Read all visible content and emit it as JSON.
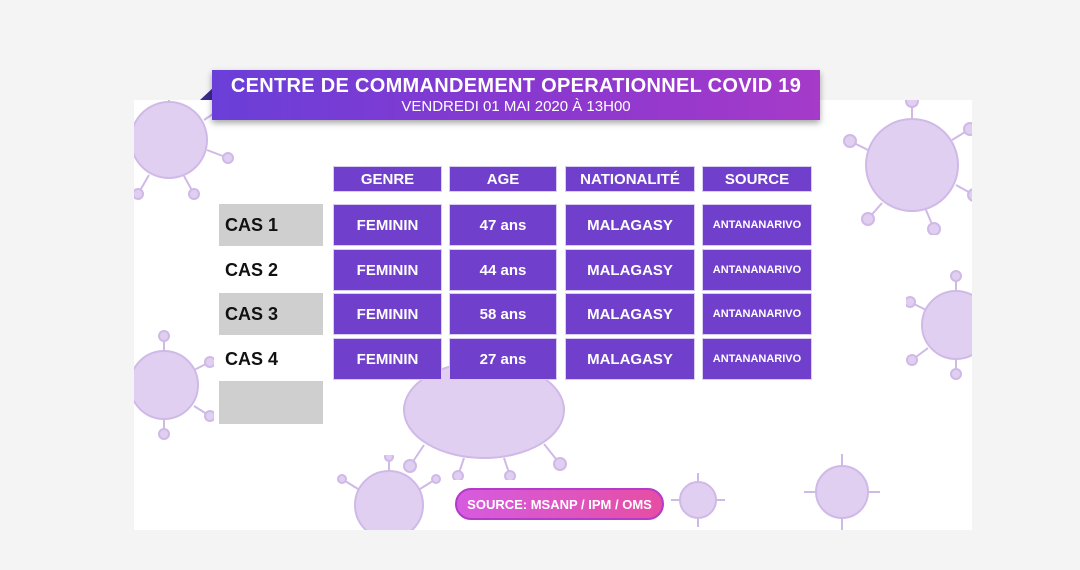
{
  "banner": {
    "title": "CENTRE DE COMMANDEMENT OPERATIONNEL COVID 19",
    "subtitle": "VENDREDI 01 MAI 2020 À 13H00"
  },
  "table": {
    "headers": [
      "GENRE",
      "AGE",
      "NATIONALITÉ",
      "SOURCE"
    ],
    "rows": [
      {
        "case": "CAS 1",
        "genre": "FEMININ",
        "age": "47 ans",
        "nationalite": "MALAGASY",
        "source": "ANTANANARIVO"
      },
      {
        "case": "CAS 2",
        "genre": "FEMININ",
        "age": "44 ans",
        "nationalite": "MALAGASY",
        "source": "ANTANANARIVO"
      },
      {
        "case": "CAS 3",
        "genre": "FEMININ",
        "age": "58 ans",
        "nationalite": "MALAGASY",
        "source": "ANTANANARIVO"
      },
      {
        "case": "CAS 4",
        "genre": "FEMININ",
        "age": "27 ans",
        "nationalite": "MALAGASY",
        "source": "ANTANANARIVO"
      }
    ]
  },
  "footer": {
    "source": "SOURCE: MSANP / IPM / OMS"
  },
  "colors": {
    "primary": "#7040cc",
    "banner_start": "#6a3fd8",
    "banner_end": "#a63ac9",
    "pill": "#e64ea4",
    "grey": "#cfcfcf"
  },
  "icons": [
    "virus-icon"
  ]
}
